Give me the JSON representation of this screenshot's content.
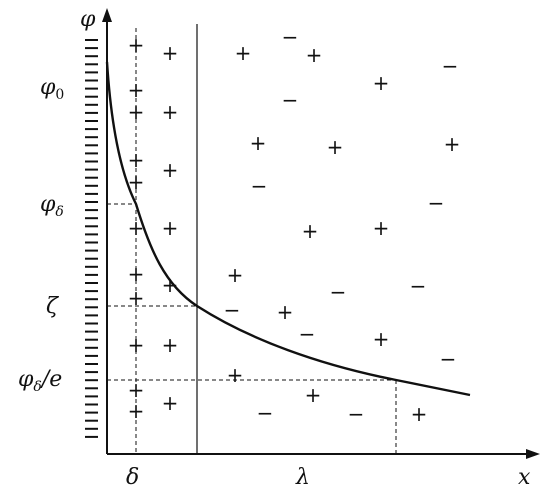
{
  "axes": {
    "y_label": "φ",
    "x_label": "x"
  },
  "y_ticks": {
    "phi0": "φ",
    "phi0_sub": "0",
    "phi_delta": "φ",
    "phi_delta_sub": "δ",
    "zeta": "ζ",
    "phi_delta_e_main": "φ",
    "phi_delta_e_sub": "δ",
    "phi_delta_e_tail": "/e"
  },
  "x_ticks": {
    "delta": "δ",
    "lambda": "λ"
  },
  "signs": {
    "plus": "+",
    "minus": "−"
  }
}
